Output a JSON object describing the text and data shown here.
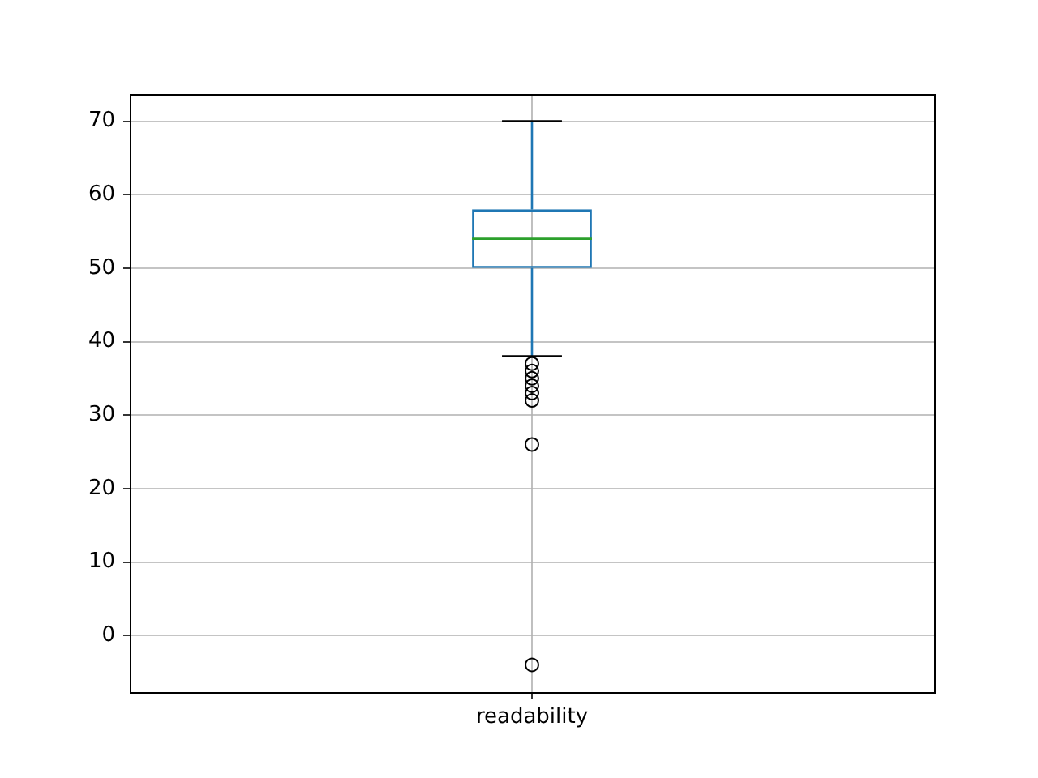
{
  "chart_data": {
    "type": "box",
    "categories": [
      "readability"
    ],
    "boxes": [
      {
        "low": 38,
        "q1": 50,
        "median": 54,
        "q3": 58,
        "high": 70,
        "outliers": [
          37,
          36,
          35,
          34,
          33,
          32,
          26,
          -4
        ]
      }
    ],
    "color": "#1f77b4",
    "ylim": [
      -7.7,
      73.7
    ],
    "yticks": [
      0,
      10,
      20,
      30,
      40,
      50,
      60,
      70
    ],
    "grid": true
  }
}
